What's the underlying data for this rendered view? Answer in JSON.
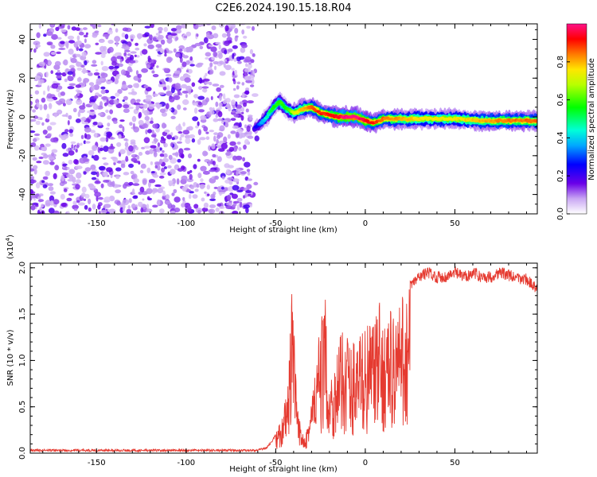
{
  "title": "C2E6.2024.190.15.18.R04",
  "chart_data": [
    {
      "type": "heatmap",
      "xlabel": "Height of straight line (km)",
      "ylabel": "Frequency (Hz)",
      "xlim": [
        -187,
        96
      ],
      "ylim": [
        -50,
        48
      ],
      "x_ticks": [
        -150,
        -100,
        -50,
        0,
        50
      ],
      "x_tick_labels": [
        "-150",
        "-100",
        "-50",
        "0",
        "50"
      ],
      "y_ticks": [
        -40,
        -20,
        0,
        20,
        40
      ],
      "y_tick_labels": [
        "-40",
        "-20",
        "0",
        "20",
        "40"
      ],
      "colorbar": {
        "label": "Normalized spectral amplitude",
        "range": [
          0,
          1
        ],
        "ticks": [
          0.0,
          0.2,
          0.4,
          0.6,
          0.8
        ],
        "tick_labels": [
          "0.0",
          "0.2",
          "0.4",
          "0.6",
          "0.8"
        ]
      },
      "noise_region": {
        "x": [
          -187,
          -62
        ],
        "f": [
          -50,
          48
        ],
        "typical_amplitude": 0.12
      },
      "ridge": [
        {
          "x": -62,
          "f": -6,
          "amp": 0.2
        },
        {
          "x": -58,
          "f": -3,
          "amp": 0.35
        },
        {
          "x": -55,
          "f": 0,
          "amp": 0.45
        },
        {
          "x": -52,
          "f": 4,
          "amp": 0.55
        },
        {
          "x": -48,
          "f": 8,
          "amp": 0.6
        },
        {
          "x": -44,
          "f": 4,
          "amp": 0.55
        },
        {
          "x": -40,
          "f": 2,
          "amp": 0.7
        },
        {
          "x": -35,
          "f": 4,
          "amp": 0.8
        },
        {
          "x": -30,
          "f": 5,
          "amp": 0.85
        },
        {
          "x": -25,
          "f": 2,
          "amp": 0.9
        },
        {
          "x": -20,
          "f": 1,
          "amp": 0.9
        },
        {
          "x": -15,
          "f": 0,
          "amp": 0.95
        },
        {
          "x": -10,
          "f": 0,
          "amp": 1.0
        },
        {
          "x": -5,
          "f": 0,
          "amp": 1.0
        },
        {
          "x": 0,
          "f": -2,
          "amp": 0.95
        },
        {
          "x": 5,
          "f": -3,
          "amp": 0.9
        },
        {
          "x": 10,
          "f": -1,
          "amp": 0.85
        },
        {
          "x": 20,
          "f": -1,
          "amp": 0.8
        },
        {
          "x": 35,
          "f": -1,
          "amp": 0.75
        },
        {
          "x": 50,
          "f": -1,
          "amp": 0.75
        },
        {
          "x": 65,
          "f": -2,
          "amp": 0.8
        },
        {
          "x": 80,
          "f": -2,
          "amp": 0.85
        },
        {
          "x": 96,
          "f": -2,
          "amp": 0.85
        }
      ]
    },
    {
      "type": "line",
      "xlabel": "Height of straight line (km)",
      "ylabel": "SNR (10 * v/v)",
      "y_multiplier": "(x10",
      "y_multiplier_exp": "4",
      "y_multiplier_close": ")",
      "xlim": [
        -187,
        96
      ],
      "ylim": [
        0,
        20500
      ],
      "x_ticks": [
        -150,
        -100,
        -50,
        0,
        50
      ],
      "x_tick_labels": [
        "-150",
        "-100",
        "-50",
        "0",
        "50"
      ],
      "y_ticks": [
        0,
        5000,
        10000,
        15000,
        20000
      ],
      "y_tick_labels": [
        "0.0",
        "0.5",
        "1.0",
        "1.5",
        "2.0"
      ],
      "color": "#e53a30",
      "series": [
        {
          "x": [
            -187,
            -150,
            -100,
            -60,
            -55,
            -52,
            -50,
            -48,
            -46,
            -44,
            -43,
            -42,
            -41,
            -40,
            -39,
            -38,
            -36,
            -34,
            -32,
            -30,
            -28,
            -26,
            -24,
            -22,
            -20,
            -18,
            -16,
            -14,
            -12,
            -10,
            -8,
            -6,
            -4,
            -2,
            0,
            2,
            4,
            6,
            8,
            10,
            12,
            14,
            16,
            20,
            25,
            30,
            35,
            40,
            45,
            50,
            55,
            60,
            65,
            70,
            75,
            80,
            85,
            90,
            96
          ],
          "y": [
            300,
            300,
            300,
            300,
            600,
            1300,
            2000,
            3000,
            4500,
            6000,
            8000,
            12000,
            19000,
            14000,
            9000,
            5000,
            3000,
            2500,
            3500,
            6000,
            9000,
            12000,
            14500,
            16000,
            8000,
            9000,
            10500,
            12000,
            13000,
            13500,
            11000,
            12500,
            12000,
            13000,
            13000,
            13500,
            14500,
            14000,
            15500,
            13500,
            15000,
            15000,
            15000,
            16000,
            18000,
            19000,
            19500,
            19000,
            19000,
            19500,
            19000,
            19500,
            19000,
            19000,
            19500,
            19200,
            18800,
            18800,
            17500
          ]
        }
      ]
    }
  ]
}
